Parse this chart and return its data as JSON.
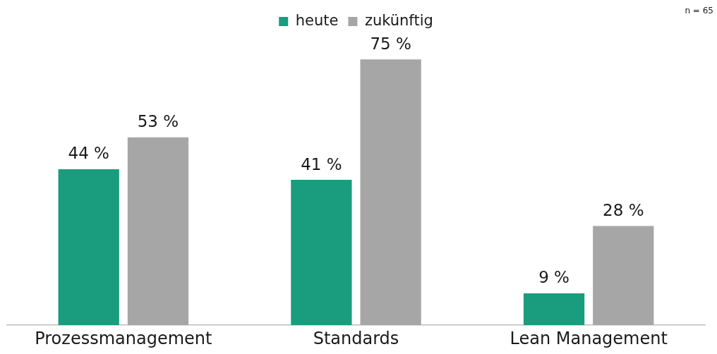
{
  "chart_data": {
    "type": "bar",
    "categories": [
      "Prozessmanagement",
      "Standards",
      "Lean Management"
    ],
    "series": [
      {
        "name": "heute",
        "color": "#1a9c7e",
        "values": [
          44,
          41,
          9
        ],
        "value_labels": [
          "44 %",
          "41 %",
          "9 %"
        ]
      },
      {
        "name": "zukünftig",
        "color": "#a6a6a6",
        "values": [
          53,
          75,
          28
        ],
        "value_labels": [
          "53 %",
          "75 %",
          "28 %"
        ]
      }
    ],
    "tick_labels": "x",
    "grid": false,
    "legend": "top",
    "annotations": [
      "n = 65"
    ]
  }
}
